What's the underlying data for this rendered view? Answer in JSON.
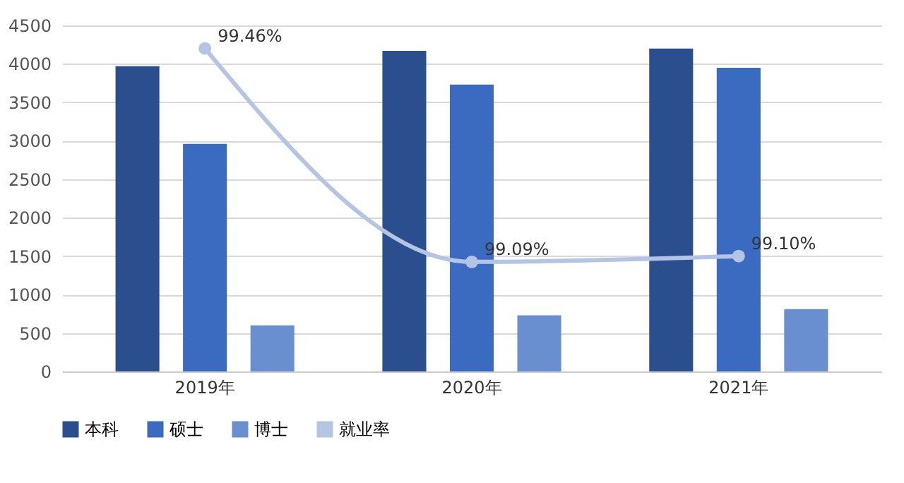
{
  "chart_data": {
    "type": "bar",
    "categories": [
      "2019年",
      "2020年",
      "2021年"
    ],
    "series": [
      {
        "name": "本科",
        "color": "#2b4f8e",
        "values": [
          3970,
          4170,
          4200
        ]
      },
      {
        "name": "硕士",
        "color": "#3a6bc0",
        "values": [
          2960,
          3730,
          3950
        ]
      },
      {
        "name": "博士",
        "color": "#6a8fd0",
        "values": [
          600,
          730,
          810
        ]
      },
      {
        "name": "就业率",
        "type": "line",
        "axis": "y2",
        "color": "#b4c4e4",
        "values": [
          99.46,
          99.09,
          99.1
        ],
        "value_labels": [
          "99.46%",
          "99.09%",
          "99.10%"
        ]
      }
    ],
    "ylim": [
      0,
      4500
    ],
    "yticks": [
      0,
      500,
      1000,
      1500,
      2000,
      2500,
      3000,
      3500,
      4000,
      4500
    ],
    "y2lim": [
      98.9,
      99.5
    ],
    "grid": "y",
    "legend": "bottom",
    "marker": "circle"
  }
}
